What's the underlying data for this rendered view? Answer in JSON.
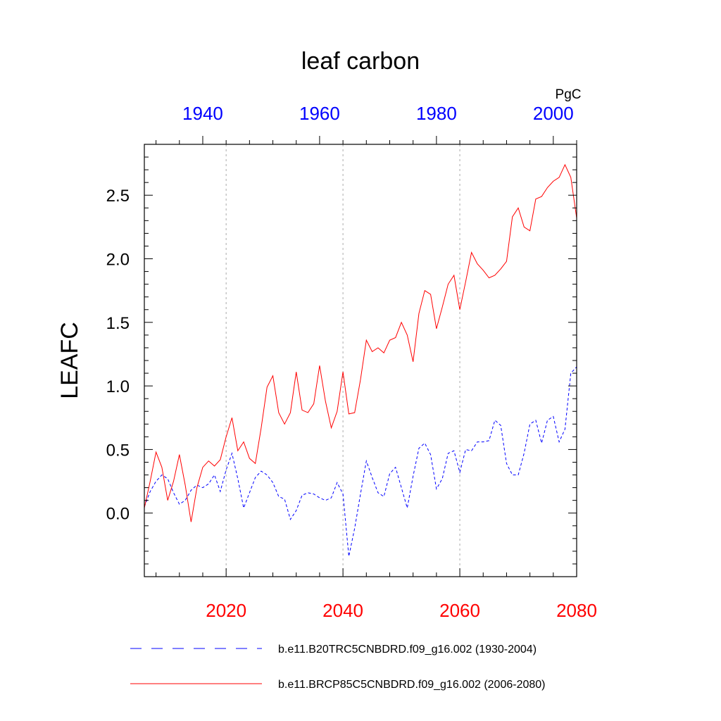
{
  "chart_data": {
    "type": "line",
    "title": "leaf carbon",
    "units": "PgC",
    "ylabel": "LEAFC",
    "ylim": [
      -0.5,
      2.9
    ],
    "yticks": [
      0.0,
      0.5,
      1.0,
      1.5,
      2.0,
      2.5
    ],
    "ytick_labels": [
      "0.0",
      "0.5",
      "1.0",
      "1.5",
      "2.0",
      "2.5"
    ],
    "bottom_axis": {
      "range": [
        2006,
        2080
      ],
      "ticks": [
        2020,
        2040,
        2060,
        2080
      ],
      "tick_labels": [
        "2020",
        "2040",
        "2060",
        "2080"
      ],
      "color": "#ff0000"
    },
    "top_axis": {
      "range": [
        1930,
        2004
      ],
      "ticks": [
        1940,
        1960,
        1980,
        2000
      ],
      "tick_labels": [
        "1940",
        "1960",
        "1980",
        "2000"
      ],
      "color": "#0000ff"
    },
    "vertical_gridlines": [
      2020,
      2040,
      2060
    ],
    "series": [
      {
        "name": "b.e11.B20TRC5CNBDRD.f09_g16.002 (1930-2004)",
        "color": "#0000ff",
        "dash": "dashed",
        "x_start": 2006,
        "values": [
          0.05,
          0.17,
          0.25,
          0.3,
          0.27,
          0.16,
          0.07,
          0.1,
          0.18,
          0.22,
          0.2,
          0.23,
          0.3,
          0.17,
          0.34,
          0.47,
          0.27,
          0.04,
          0.16,
          0.28,
          0.33,
          0.3,
          0.24,
          0.13,
          0.11,
          -0.05,
          0.02,
          0.14,
          0.16,
          0.15,
          0.12,
          0.1,
          0.12,
          0.24,
          0.15,
          -0.34,
          -0.12,
          0.15,
          0.41,
          0.28,
          0.16,
          0.13,
          0.31,
          0.36,
          0.2,
          0.04,
          0.29,
          0.51,
          0.55,
          0.46,
          0.19,
          0.27,
          0.47,
          0.49,
          0.32,
          0.5,
          0.49,
          0.56,
          0.56,
          0.57,
          0.73,
          0.69,
          0.39,
          0.3,
          0.3,
          0.47,
          0.7,
          0.73,
          0.55,
          0.73,
          0.76,
          0.56,
          0.66,
          1.1,
          1.15
        ]
      },
      {
        "name": "b.e11.BRCP85C5CNBDRD.f09_g16.002 (2006-2080)",
        "color": "#ff0000",
        "dash": "solid",
        "x_start": 2006,
        "values": [
          0.04,
          0.25,
          0.48,
          0.36,
          0.1,
          0.25,
          0.46,
          0.22,
          -0.07,
          0.2,
          0.36,
          0.41,
          0.37,
          0.42,
          0.6,
          0.75,
          0.49,
          0.56,
          0.43,
          0.39,
          0.67,
          0.99,
          1.08,
          0.79,
          0.7,
          0.79,
          1.11,
          0.81,
          0.79,
          0.86,
          1.16,
          0.88,
          0.67,
          0.8,
          1.11,
          0.78,
          0.79,
          1.05,
          1.36,
          1.27,
          1.3,
          1.26,
          1.36,
          1.38,
          1.5,
          1.4,
          1.19,
          1.57,
          1.75,
          1.72,
          1.45,
          1.62,
          1.8,
          1.87,
          1.6,
          1.82,
          2.05,
          1.96,
          1.91,
          1.85,
          1.87,
          1.92,
          1.98,
          2.33,
          2.4,
          2.25,
          2.22,
          2.47,
          2.49,
          2.56,
          2.61,
          2.64,
          2.74,
          2.64,
          2.32
        ]
      }
    ]
  }
}
